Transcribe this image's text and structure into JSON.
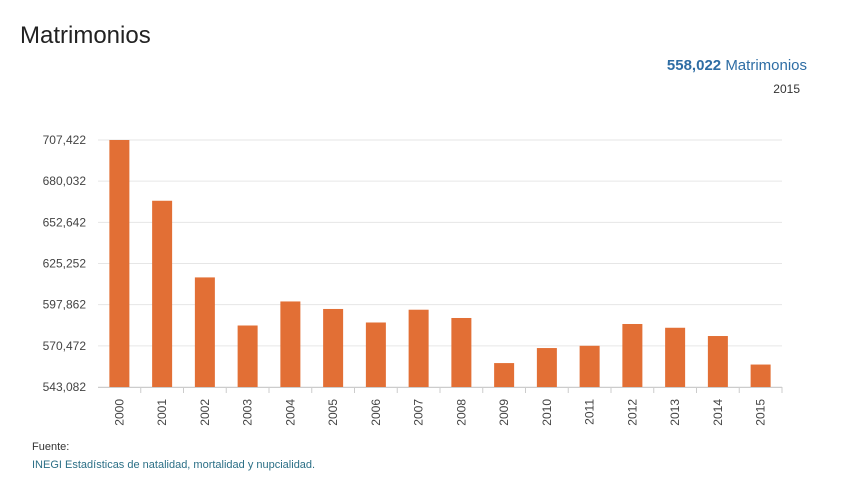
{
  "header": {
    "title": "Matrimonios",
    "kpi_value": "558,022",
    "kpi_unit": "Matrimonios",
    "kpi_year": "2015"
  },
  "source": {
    "label": "Fuente:",
    "link_text": "INEGI Estadísticas de natalidad, mortalidad y nupcialidad."
  },
  "colors": {
    "bar": "#e26f35",
    "grid": "#e6e6e6",
    "axis_text": "#444444",
    "link": "#2b6f86",
    "kpi": "#2e6da4"
  },
  "chart_data": {
    "type": "bar",
    "title": "",
    "xlabel": "",
    "ylabel": "",
    "categories": [
      "2000",
      "2001",
      "2002",
      "2003",
      "2004",
      "2005",
      "2006",
      "2007",
      "2008",
      "2009",
      "2010",
      "2011",
      "2012",
      "2013",
      "2014",
      "2015"
    ],
    "values": [
      707422,
      667000,
      616000,
      584000,
      600000,
      595000,
      586000,
      594500,
      589000,
      559000,
      569000,
      570500,
      585000,
      582500,
      577000,
      558022
    ],
    "y_ticks": [
      "707,422",
      "680,032",
      "652,642",
      "625,252",
      "597,862",
      "570,472",
      "543,082"
    ],
    "ylim": [
      543082,
      707422
    ],
    "grid": true,
    "legend": "none"
  }
}
